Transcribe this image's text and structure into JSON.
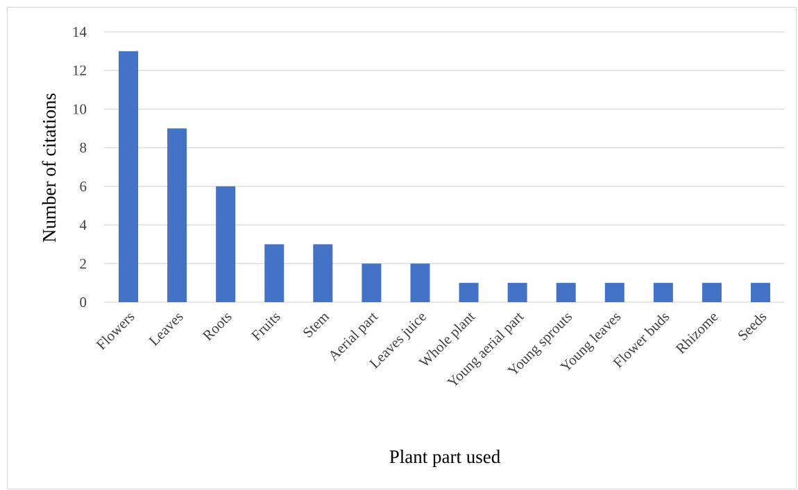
{
  "chart_data": {
    "type": "bar",
    "title": "",
    "xlabel": "Plant part used",
    "ylabel": "Number of citations",
    "categories": [
      "Flowers",
      "Leaves",
      "Roots",
      "Fruits",
      "Stem",
      "Aerial part",
      "Leaves juice",
      "Whole plant",
      "Young aerial part",
      "Young sprouts",
      "Young leaves",
      "Flower buds",
      "Rhizome",
      "Seeds"
    ],
    "values": [
      13,
      9,
      6,
      3,
      3,
      2,
      2,
      1,
      1,
      1,
      1,
      1,
      1,
      1
    ],
    "ylim": [
      0,
      14
    ],
    "yticks": [
      0,
      2,
      4,
      6,
      8,
      10,
      12,
      14
    ],
    "grid": true,
    "legend": "none",
    "bar_color": "#4472C4"
  }
}
